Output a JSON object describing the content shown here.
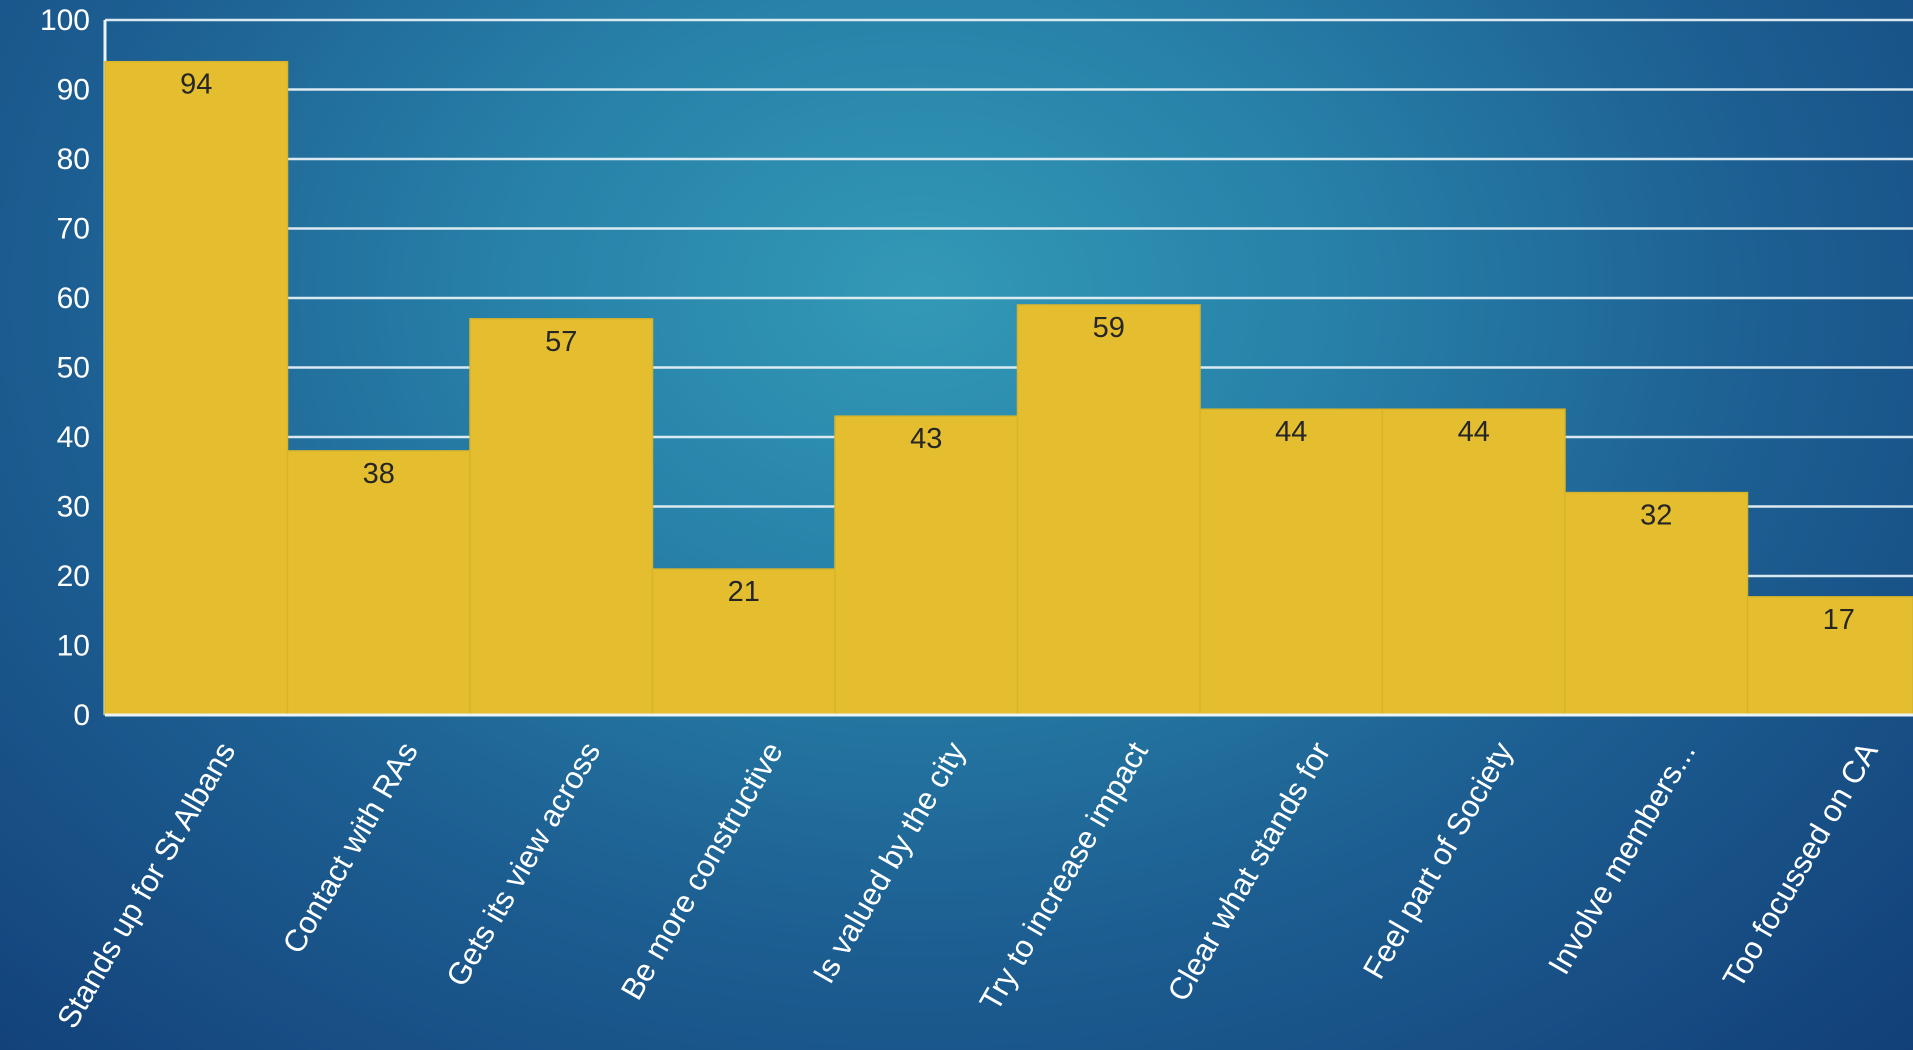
{
  "chart_data": {
    "type": "bar",
    "title": "",
    "xlabel": "",
    "ylabel": "",
    "categories": [
      "Stands up for St Albans",
      "Contact with RAs",
      "Gets its view across",
      "Be more constructive",
      "Is valued by the city",
      "Try to increase impact",
      "Clear what stands for",
      "Feel part of Society",
      "Involve members...",
      "Too focussed on CA"
    ],
    "values": [
      94,
      38,
      57,
      21,
      43,
      59,
      44,
      44,
      32,
      17
    ],
    "value_labels": [
      "94",
      "38",
      "57",
      "21",
      "43",
      "59",
      "44",
      "44",
      "32",
      "17"
    ],
    "ylim": [
      0,
      100
    ],
    "yticks": [
      "0",
      "10",
      "20",
      "30",
      "40",
      "50",
      "60",
      "70",
      "80",
      "90",
      "100"
    ],
    "grid": true,
    "legend": "none",
    "colors": {
      "bar": "#e5be2f",
      "value_label": "#262626",
      "gridline": "#e4f0f6",
      "axis_text": "#ffffff",
      "background_center": "#3399b6",
      "background_edge": "#123f78"
    }
  }
}
